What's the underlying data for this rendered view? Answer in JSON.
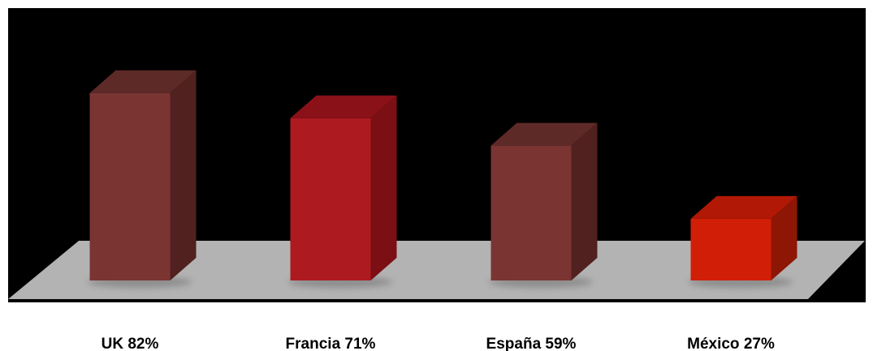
{
  "chart_data": {
    "type": "bar",
    "categories": [
      "UK",
      "Francia",
      "España",
      "México"
    ],
    "values": [
      82,
      71,
      59,
      27
    ],
    "label_text": [
      "UK 82%",
      "Francia 71%",
      "España 59%",
      "México 27%"
    ],
    "value_unit": "%",
    "title": "",
    "xlabel": "",
    "ylabel": "",
    "ylim": [
      0,
      100
    ],
    "grid": false,
    "legend": "none",
    "colors": {
      "background": "#000000",
      "floor": "#b3b3b3",
      "bar_front": [
        "#7a3532",
        "#ad1b20",
        "#7a3532",
        "#d11f07"
      ],
      "bar_top": [
        "#5e2a28",
        "#8a1118",
        "#5e2a28",
        "#b11805"
      ],
      "bar_side": [
        "#51211f",
        "#7b0f14",
        "#51211f",
        "#8e1604"
      ]
    }
  }
}
